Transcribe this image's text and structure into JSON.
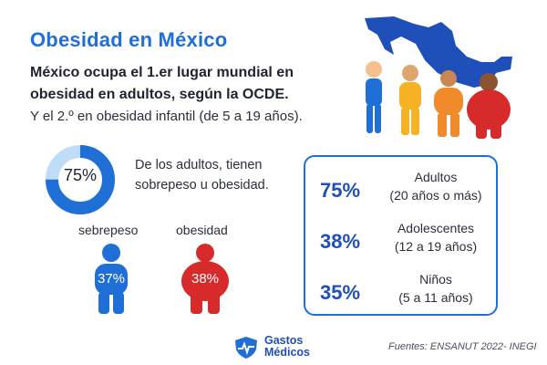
{
  "title": "Obesidad en México",
  "headline": "México ocupa el 1.er lugar mundial en obesidad en adultos, según la OCDE.",
  "subline": "Y el 2.º en obesidad infantil (de 5 a 19 años).",
  "donut": {
    "label": "75%",
    "value": 0.75,
    "color": "#1f6fd6",
    "track_color": "#bfdcf8"
  },
  "adult_text": "De los adultos, tienen sobrepeso u obesidad.",
  "figures": [
    {
      "label": "sebrepeso",
      "pct": "37%",
      "color": "#1f6fd6"
    },
    {
      "label": "obesidad",
      "pct": "38%",
      "color": "#d72a2a"
    }
  ],
  "stats": [
    {
      "pct": "75%",
      "line1": "Adultos",
      "line2": "(20 años o más)"
    },
    {
      "pct": "38%",
      "line1": "Adolescentes",
      "line2": "(12 a 19 años)"
    },
    {
      "pct": "35%",
      "line1": "Niños",
      "line2": "(5 a 11 años)"
    }
  ],
  "logo": {
    "line1": "Gastos",
    "line2": "Médicos"
  },
  "sources": "Fuentes: ENSANUT 2022- INEGI",
  "colors": {
    "accent": "#1f6fd6",
    "dark_blue": "#1f4fb8",
    "red": "#d72a2a",
    "yellow": "#f4b224",
    "orange": "#f08a2a"
  }
}
